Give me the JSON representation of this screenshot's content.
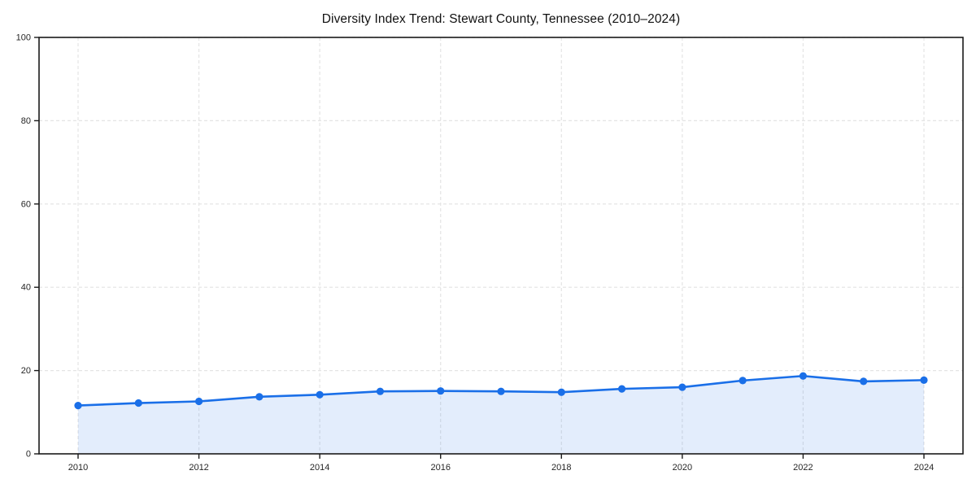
{
  "chart_data": {
    "type": "area",
    "title": "Diversity Index Trend: Stewart County, Tennessee (2010–2024)",
    "series_name": "Diversity Index",
    "x": [
      2010,
      2011,
      2012,
      2013,
      2014,
      2015,
      2016,
      2017,
      2018,
      2019,
      2020,
      2021,
      2022,
      2023,
      2024
    ],
    "values": [
      11.6,
      12.2,
      12.6,
      13.7,
      14.2,
      15.0,
      15.1,
      15.0,
      14.8,
      15.6,
      16.0,
      17.6,
      18.7,
      17.4,
      17.7
    ],
    "xlabel": "",
    "ylabel": "",
    "ylim": [
      0,
      100
    ],
    "yticks": [
      0,
      20,
      40,
      60,
      80,
      100
    ],
    "xtick_interval": 2,
    "grid": true,
    "grid_style": "dashed",
    "legend_position": "none",
    "marker": "circle",
    "colors": {
      "line": "#1a6fe8",
      "fill": "#1a6fe8",
      "fill_opacity": 0.12,
      "grid": "#e4e4e4",
      "spine": "#1a1a1a",
      "tick_label": "#262626",
      "title": "#111111",
      "background": "#ffffff"
    }
  }
}
